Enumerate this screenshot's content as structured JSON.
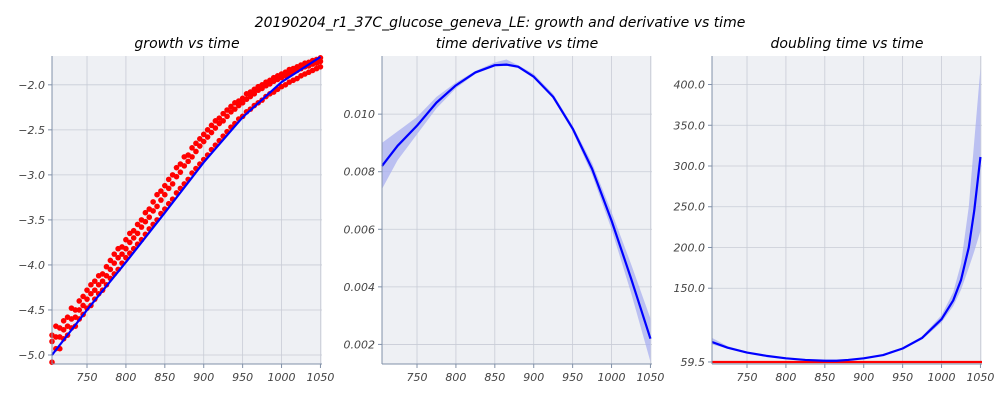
{
  "figure_title": "20190204_r1_37C_glucose_geneva_LE: growth and derivative vs time",
  "colors": {
    "plot_bg": "#eef0f4",
    "grid": "#c8ccd6",
    "axis": "#8090a8",
    "fit_line": "#0000ff",
    "band": "#aab0f0",
    "points": "#ff0000",
    "threshold": "#ff0000"
  },
  "chart_data": [
    {
      "type": "scatter",
      "title": "growth vs time",
      "xlabel": "",
      "ylabel": "",
      "xlim": [
        705,
        1052
      ],
      "ylim": [
        -5.1,
        -1.68
      ],
      "xticks": [
        750,
        800,
        850,
        900,
        950,
        1000,
        1050
      ],
      "yticks": [
        -5.0,
        -4.5,
        -4.0,
        -3.5,
        -3.0,
        -2.5,
        -2.0
      ],
      "ytick_labels": [
        "−5.0",
        "−4.5",
        "−4.0",
        "−3.5",
        "−3.0",
        "−2.5",
        "−2.0"
      ],
      "grid": true,
      "fit_line": {
        "x": [
          705,
          750,
          800,
          850,
          900,
          950,
          1000,
          1050
        ],
        "y": [
          -5.0,
          -4.5,
          -3.97,
          -3.42,
          -2.86,
          -2.36,
          -1.97,
          -1.69
        ]
      },
      "point_groups": {
        "x": [
          705,
          710,
          715,
          720,
          725,
          730,
          735,
          740,
          745,
          750,
          755,
          760,
          765,
          770,
          775,
          780,
          785,
          790,
          795,
          800,
          805,
          810,
          815,
          820,
          825,
          830,
          835,
          840,
          845,
          850,
          855,
          860,
          865,
          870,
          875,
          880,
          885,
          890,
          895,
          900,
          905,
          910,
          915,
          920,
          925,
          930,
          935,
          940,
          945,
          950,
          955,
          960,
          965,
          970,
          975,
          980,
          985,
          990,
          995,
          1000,
          1005,
          1010,
          1015,
          1020,
          1025,
          1030,
          1035,
          1040,
          1045,
          1050
        ],
        "high": [
          -4.78,
          -4.68,
          -4.7,
          -4.62,
          -4.58,
          -4.48,
          -4.5,
          -4.4,
          -4.35,
          -4.28,
          -4.22,
          -4.18,
          -4.12,
          -4.1,
          -4.02,
          -3.95,
          -3.88,
          -3.82,
          -3.8,
          -3.72,
          -3.65,
          -3.62,
          -3.55,
          -3.5,
          -3.42,
          -3.38,
          -3.3,
          -3.22,
          -3.18,
          -3.12,
          -3.05,
          -3.0,
          -2.92,
          -2.88,
          -2.8,
          -2.78,
          -2.7,
          -2.65,
          -2.6,
          -2.55,
          -2.5,
          -2.45,
          -2.4,
          -2.37,
          -2.32,
          -2.28,
          -2.24,
          -2.2,
          -2.18,
          -2.15,
          -2.1,
          -2.08,
          -2.05,
          -2.02,
          -2.0,
          -1.97,
          -1.95,
          -1.92,
          -1.9,
          -1.88,
          -1.86,
          -1.83,
          -1.82,
          -1.8,
          -1.78,
          -1.76,
          -1.75,
          -1.73,
          -1.72,
          -1.7
        ],
        "mid": [
          -4.85,
          -4.8,
          -4.8,
          -4.72,
          -4.68,
          -4.6,
          -4.58,
          -4.5,
          -4.45,
          -4.38,
          -4.32,
          -4.28,
          -4.22,
          -4.18,
          -4.12,
          -4.05,
          -3.98,
          -3.92,
          -3.88,
          -3.82,
          -3.75,
          -3.7,
          -3.65,
          -3.58,
          -3.52,
          -3.47,
          -3.4,
          -3.35,
          -3.28,
          -3.22,
          -3.15,
          -3.1,
          -3.02,
          -2.97,
          -2.9,
          -2.85,
          -2.8,
          -2.74,
          -2.68,
          -2.63,
          -2.58,
          -2.53,
          -2.48,
          -2.43,
          -2.4,
          -2.35,
          -2.3,
          -2.27,
          -2.23,
          -2.2,
          -2.16,
          -2.13,
          -2.1,
          -2.06,
          -2.04,
          -2.01,
          -1.99,
          -1.96,
          -1.94,
          -1.92,
          -1.9,
          -1.88,
          -1.86,
          -1.84,
          -1.82,
          -1.8,
          -1.79,
          -1.77,
          -1.76,
          -1.74
        ],
        "low": [
          -5.08,
          -4.93,
          -4.93,
          -4.82,
          -4.78,
          -4.7,
          -4.68,
          -4.6,
          -4.55,
          -4.48,
          -4.45,
          -4.38,
          -4.32,
          -4.28,
          -4.22,
          -4.15,
          -4.1,
          -4.05,
          -3.98,
          -3.92,
          -3.87,
          -3.82,
          -3.77,
          -3.72,
          -3.66,
          -3.6,
          -3.55,
          -3.5,
          -3.43,
          -3.38,
          -3.32,
          -3.27,
          -3.2,
          -3.15,
          -3.1,
          -3.05,
          -2.98,
          -2.93,
          -2.88,
          -2.83,
          -2.78,
          -2.72,
          -2.67,
          -2.62,
          -2.57,
          -2.52,
          -2.47,
          -2.43,
          -2.38,
          -2.35,
          -2.3,
          -2.27,
          -2.23,
          -2.2,
          -2.17,
          -2.13,
          -2.1,
          -2.08,
          -2.05,
          -2.02,
          -2.0,
          -1.97,
          -1.95,
          -1.93,
          -1.9,
          -1.88,
          -1.86,
          -1.84,
          -1.82,
          -1.8
        ]
      }
    },
    {
      "type": "line",
      "title": "time derivative vs time",
      "xlabel": "",
      "ylabel": "",
      "xlim": [
        705,
        1052
      ],
      "ylim": [
        0.00132,
        0.01202
      ],
      "xticks": [
        750,
        800,
        850,
        900,
        950,
        1000,
        1050
      ],
      "yticks": [
        0.002,
        0.004,
        0.006,
        0.008,
        0.01
      ],
      "ytick_labels": [
        "0.002",
        "0.004",
        "0.006",
        "0.008",
        "0.010"
      ],
      "grid": true,
      "series": [
        {
          "x": [
            705,
            725,
            750,
            775,
            800,
            825,
            850,
            865,
            880,
            900,
            925,
            950,
            975,
            1000,
            1025,
            1050
          ],
          "y": [
            0.0082,
            0.0089,
            0.0096,
            0.0104,
            0.011,
            0.01145,
            0.0117,
            0.01172,
            0.01165,
            0.0113,
            0.0106,
            0.0095,
            0.0081,
            0.0063,
            0.0043,
            0.0022
          ],
          "lower": [
            0.0074,
            0.0084,
            0.0093,
            0.0102,
            0.0109,
            0.0114,
            0.01165,
            0.01168,
            0.0116,
            0.01125,
            0.01055,
            0.0094,
            0.0079,
            0.006,
            0.0038,
            0.0014
          ],
          "upper": [
            0.009,
            0.0094,
            0.0099,
            0.0106,
            0.0111,
            0.0115,
            0.0118,
            0.0119,
            0.0117,
            0.0114,
            0.0107,
            0.0096,
            0.0083,
            0.0066,
            0.0048,
            0.0029
          ]
        }
      ]
    },
    {
      "type": "line",
      "title": "doubling time vs time",
      "xlabel": "",
      "ylabel": "",
      "xlim": [
        705,
        1052
      ],
      "ylim": [
        57,
        435
      ],
      "xticks": [
        750,
        800,
        850,
        900,
        950,
        1000,
        1050
      ],
      "yticks": [
        59.5,
        150.0,
        200.0,
        250.0,
        300.0,
        350.0,
        400.0
      ],
      "ytick_labels": [
        "59.5",
        "150.0",
        "200.0",
        "250.0",
        "300.0",
        "350.0",
        "400.0"
      ],
      "grid": true,
      "threshold": 59.5,
      "series": [
        {
          "x": [
            705,
            725,
            750,
            775,
            800,
            825,
            850,
            865,
            880,
            900,
            925,
            950,
            975,
            1000,
            1015,
            1025,
            1035,
            1042,
            1050
          ],
          "y": [
            84,
            77,
            71,
            67,
            64,
            62,
            61,
            61,
            62,
            64,
            68,
            76,
            89,
            112,
            135,
            160,
            200,
            245,
            311
          ],
          "lower": [
            81,
            76,
            70,
            66.5,
            63.5,
            61.8,
            60.9,
            60.9,
            61.7,
            63.6,
            67.5,
            75,
            87,
            108,
            128,
            148,
            175,
            195,
            220
          ],
          "upper": [
            89,
            79,
            72,
            67.5,
            64.5,
            62.2,
            61.1,
            61.1,
            62.3,
            64.4,
            68.5,
            77,
            91,
            117,
            145,
            180,
            250,
            330,
            420
          ]
        }
      ]
    }
  ]
}
